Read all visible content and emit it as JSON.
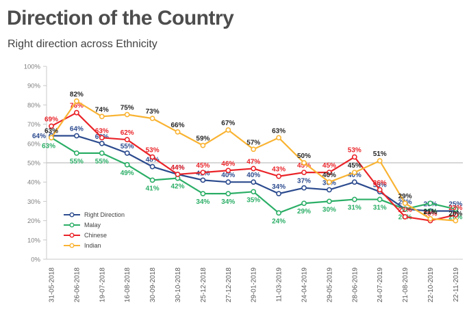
{
  "header": {
    "title": "Direction of the Country",
    "subtitle": "Right direction across Ethnicity"
  },
  "chart_data": {
    "type": "line",
    "title": "Direction of the Country",
    "subtitle": "Right direction across Ethnicity",
    "x_categories": [
      "31-05-2018",
      "26-06-2018",
      "19-07-2018",
      "16-08-2018",
      "30-09-2018",
      "30-10-2018",
      "25-12-2018",
      "27-12-2018",
      "29-01-2019",
      "11-03-2019",
      "24-04-2019",
      "29-05-2019",
      "28-06-2019",
      "24-07-2019",
      "21-08-2019",
      "22-10-2019",
      "22-11-2019"
    ],
    "series": [
      {
        "name": "Right Direction",
        "color": "#2C4B8E",
        "label_color": "#2C4B8E",
        "label_position": "above",
        "values": [
          64,
          64,
          60,
          55,
          48,
          44,
          41,
          40,
          40,
          34,
          37,
          36,
          40,
          35,
          26,
          25,
          25
        ]
      },
      {
        "name": "Malay",
        "color": "#2BAE66",
        "label_color": "#2BAE66",
        "label_position": "below",
        "values": [
          63,
          55,
          55,
          49,
          41,
          42,
          34,
          34,
          35,
          24,
          29,
          30,
          31,
          31,
          26,
          29,
          26
        ]
      },
      {
        "name": "Chinese",
        "color": "#EA2328",
        "label_color": "#EA2328",
        "label_position": "above",
        "values": [
          69,
          76,
          63,
          62,
          53,
          44,
          45,
          46,
          47,
          43,
          45,
          45,
          53,
          36,
          22,
          20,
          23
        ]
      },
      {
        "name": "Indian",
        "color": "#F9B332",
        "label_color": "#262626",
        "label_position": "above",
        "values": [
          63,
          82,
          74,
          75,
          73,
          66,
          59,
          67,
          57,
          63,
          50,
          40,
          45,
          51,
          29,
          21,
          20
        ]
      }
    ],
    "y_axis": {
      "min": 0,
      "max": 100,
      "step": 10,
      "tick_suffix": "%",
      "reference_line_at": 50
    },
    "grid": "only 50% horizontal reference line",
    "legend_position": "inside-left-bottom",
    "legend": [
      "Right Direction",
      "Malay",
      "Chinese",
      "Indian"
    ],
    "value_suffix": "%"
  },
  "colors": {
    "title_text": "#4d4d4d",
    "subtitle_text": "#404040",
    "axis_line": "#c8c8c8",
    "axis_text": "#7f7f7f",
    "x_axis_text": "#595959"
  }
}
